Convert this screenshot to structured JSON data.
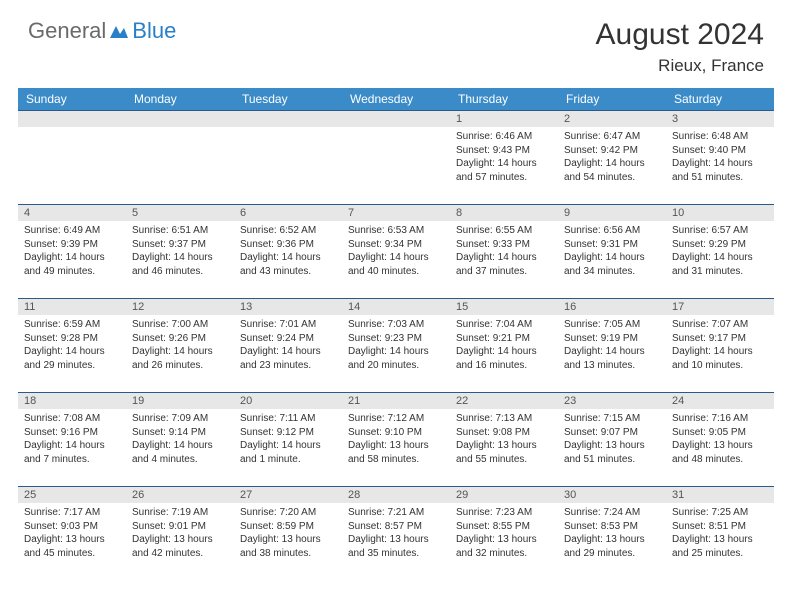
{
  "brand": {
    "text1": "General",
    "text2": "Blue",
    "text1_color": "#6a6a6a",
    "text2_color": "#2a7fc9"
  },
  "title": "August 2024",
  "location": "Rieux, France",
  "colors": {
    "header_bg": "#3b8bc9",
    "header_text": "#ffffff",
    "daynum_bg": "#e7e7e7",
    "daynum_text": "#555555",
    "border": "#2a5a8a",
    "body_text": "#333333"
  },
  "weekdays": [
    "Sunday",
    "Monday",
    "Tuesday",
    "Wednesday",
    "Thursday",
    "Friday",
    "Saturday"
  ],
  "weeks": [
    [
      {
        "day": ""
      },
      {
        "day": ""
      },
      {
        "day": ""
      },
      {
        "day": ""
      },
      {
        "day": "1",
        "sunrise": "Sunrise: 6:46 AM",
        "sunset": "Sunset: 9:43 PM",
        "daylight": "Daylight: 14 hours and 57 minutes."
      },
      {
        "day": "2",
        "sunrise": "Sunrise: 6:47 AM",
        "sunset": "Sunset: 9:42 PM",
        "daylight": "Daylight: 14 hours and 54 minutes."
      },
      {
        "day": "3",
        "sunrise": "Sunrise: 6:48 AM",
        "sunset": "Sunset: 9:40 PM",
        "daylight": "Daylight: 14 hours and 51 minutes."
      }
    ],
    [
      {
        "day": "4",
        "sunrise": "Sunrise: 6:49 AM",
        "sunset": "Sunset: 9:39 PM",
        "daylight": "Daylight: 14 hours and 49 minutes."
      },
      {
        "day": "5",
        "sunrise": "Sunrise: 6:51 AM",
        "sunset": "Sunset: 9:37 PM",
        "daylight": "Daylight: 14 hours and 46 minutes."
      },
      {
        "day": "6",
        "sunrise": "Sunrise: 6:52 AM",
        "sunset": "Sunset: 9:36 PM",
        "daylight": "Daylight: 14 hours and 43 minutes."
      },
      {
        "day": "7",
        "sunrise": "Sunrise: 6:53 AM",
        "sunset": "Sunset: 9:34 PM",
        "daylight": "Daylight: 14 hours and 40 minutes."
      },
      {
        "day": "8",
        "sunrise": "Sunrise: 6:55 AM",
        "sunset": "Sunset: 9:33 PM",
        "daylight": "Daylight: 14 hours and 37 minutes."
      },
      {
        "day": "9",
        "sunrise": "Sunrise: 6:56 AM",
        "sunset": "Sunset: 9:31 PM",
        "daylight": "Daylight: 14 hours and 34 minutes."
      },
      {
        "day": "10",
        "sunrise": "Sunrise: 6:57 AM",
        "sunset": "Sunset: 9:29 PM",
        "daylight": "Daylight: 14 hours and 31 minutes."
      }
    ],
    [
      {
        "day": "11",
        "sunrise": "Sunrise: 6:59 AM",
        "sunset": "Sunset: 9:28 PM",
        "daylight": "Daylight: 14 hours and 29 minutes."
      },
      {
        "day": "12",
        "sunrise": "Sunrise: 7:00 AM",
        "sunset": "Sunset: 9:26 PM",
        "daylight": "Daylight: 14 hours and 26 minutes."
      },
      {
        "day": "13",
        "sunrise": "Sunrise: 7:01 AM",
        "sunset": "Sunset: 9:24 PM",
        "daylight": "Daylight: 14 hours and 23 minutes."
      },
      {
        "day": "14",
        "sunrise": "Sunrise: 7:03 AM",
        "sunset": "Sunset: 9:23 PM",
        "daylight": "Daylight: 14 hours and 20 minutes."
      },
      {
        "day": "15",
        "sunrise": "Sunrise: 7:04 AM",
        "sunset": "Sunset: 9:21 PM",
        "daylight": "Daylight: 14 hours and 16 minutes."
      },
      {
        "day": "16",
        "sunrise": "Sunrise: 7:05 AM",
        "sunset": "Sunset: 9:19 PM",
        "daylight": "Daylight: 14 hours and 13 minutes."
      },
      {
        "day": "17",
        "sunrise": "Sunrise: 7:07 AM",
        "sunset": "Sunset: 9:17 PM",
        "daylight": "Daylight: 14 hours and 10 minutes."
      }
    ],
    [
      {
        "day": "18",
        "sunrise": "Sunrise: 7:08 AM",
        "sunset": "Sunset: 9:16 PM",
        "daylight": "Daylight: 14 hours and 7 minutes."
      },
      {
        "day": "19",
        "sunrise": "Sunrise: 7:09 AM",
        "sunset": "Sunset: 9:14 PM",
        "daylight": "Daylight: 14 hours and 4 minutes."
      },
      {
        "day": "20",
        "sunrise": "Sunrise: 7:11 AM",
        "sunset": "Sunset: 9:12 PM",
        "daylight": "Daylight: 14 hours and 1 minute."
      },
      {
        "day": "21",
        "sunrise": "Sunrise: 7:12 AM",
        "sunset": "Sunset: 9:10 PM",
        "daylight": "Daylight: 13 hours and 58 minutes."
      },
      {
        "day": "22",
        "sunrise": "Sunrise: 7:13 AM",
        "sunset": "Sunset: 9:08 PM",
        "daylight": "Daylight: 13 hours and 55 minutes."
      },
      {
        "day": "23",
        "sunrise": "Sunrise: 7:15 AM",
        "sunset": "Sunset: 9:07 PM",
        "daylight": "Daylight: 13 hours and 51 minutes."
      },
      {
        "day": "24",
        "sunrise": "Sunrise: 7:16 AM",
        "sunset": "Sunset: 9:05 PM",
        "daylight": "Daylight: 13 hours and 48 minutes."
      }
    ],
    [
      {
        "day": "25",
        "sunrise": "Sunrise: 7:17 AM",
        "sunset": "Sunset: 9:03 PM",
        "daylight": "Daylight: 13 hours and 45 minutes."
      },
      {
        "day": "26",
        "sunrise": "Sunrise: 7:19 AM",
        "sunset": "Sunset: 9:01 PM",
        "daylight": "Daylight: 13 hours and 42 minutes."
      },
      {
        "day": "27",
        "sunrise": "Sunrise: 7:20 AM",
        "sunset": "Sunset: 8:59 PM",
        "daylight": "Daylight: 13 hours and 38 minutes."
      },
      {
        "day": "28",
        "sunrise": "Sunrise: 7:21 AM",
        "sunset": "Sunset: 8:57 PM",
        "daylight": "Daylight: 13 hours and 35 minutes."
      },
      {
        "day": "29",
        "sunrise": "Sunrise: 7:23 AM",
        "sunset": "Sunset: 8:55 PM",
        "daylight": "Daylight: 13 hours and 32 minutes."
      },
      {
        "day": "30",
        "sunrise": "Sunrise: 7:24 AM",
        "sunset": "Sunset: 8:53 PM",
        "daylight": "Daylight: 13 hours and 29 minutes."
      },
      {
        "day": "31",
        "sunrise": "Sunrise: 7:25 AM",
        "sunset": "Sunset: 8:51 PM",
        "daylight": "Daylight: 13 hours and 25 minutes."
      }
    ]
  ]
}
